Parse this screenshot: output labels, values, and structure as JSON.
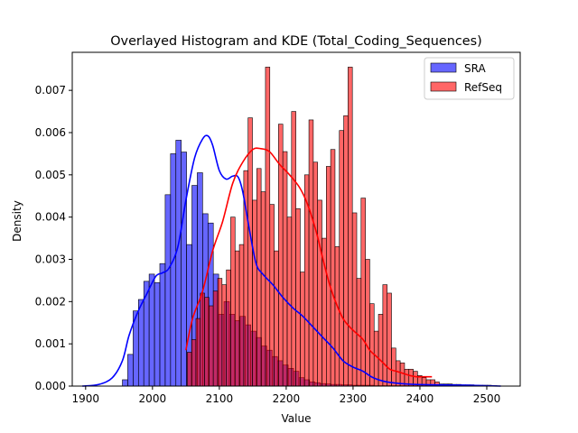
{
  "chart_data": {
    "type": "histogram",
    "title": "Overlayed Histogram and KDE (Total_Coding_Sequences)",
    "xlabel": "Value",
    "ylabel": "Density",
    "xlim": [
      1880,
      2550
    ],
    "ylim": [
      0,
      0.0079
    ],
    "xticks": [
      1900,
      2000,
      2100,
      2200,
      2300,
      2400,
      2500
    ],
    "yticks": [
      0.0,
      0.001,
      0.002,
      0.003,
      0.004,
      0.005,
      0.006,
      0.007
    ],
    "ytick_labels": [
      "0.000",
      "0.001",
      "0.002",
      "0.003",
      "0.004",
      "0.005",
      "0.006",
      "0.007"
    ],
    "legend_position": "top-right",
    "series": [
      {
        "name": "SRA",
        "color": "#0000ff",
        "bin_start": 1955,
        "bin_width": 8,
        "density": [
          0.00015,
          0.00075,
          0.00178,
          0.00205,
          0.00248,
          0.00265,
          0.00245,
          0.0029,
          0.00453,
          0.0055,
          0.00582,
          0.00554,
          0.00335,
          0.00475,
          0.00505,
          0.00408,
          0.00386,
          0.00265,
          0.0017,
          0.002,
          0.0017,
          0.00155,
          0.00165,
          0.00145,
          0.0013,
          0.00115,
          0.00095,
          0.00085,
          0.0007,
          0.0006,
          0.0005,
          0.00042,
          0.00035,
          0.0002,
          0.00015,
          0.0001,
          8e-05,
          6e-05,
          5e-05,
          4e-05,
          4e-05,
          3e-05,
          3e-05,
          2e-05,
          2e-05,
          2e-05,
          2e-05,
          1e-05,
          1e-05,
          1e-05,
          1e-05,
          1e-05,
          1e-05,
          1e-05,
          1e-05,
          1e-05,
          1e-05,
          1e-05,
          1e-05,
          1e-05,
          1e-05,
          1e-05,
          1e-05,
          1e-05,
          1e-05,
          1e-05,
          1e-05,
          1e-05,
          1e-05,
          1e-05
        ],
        "kde": [
          [
            1895,
            0.0
          ],
          [
            1920,
            4e-05
          ],
          [
            1940,
            0.0002
          ],
          [
            1955,
            0.0006
          ],
          [
            1965,
            0.0012
          ],
          [
            1978,
            0.00175
          ],
          [
            1992,
            0.0022
          ],
          [
            2005,
            0.0026
          ],
          [
            2015,
            0.00268
          ],
          [
            2025,
            0.0028
          ],
          [
            2038,
            0.0033
          ],
          [
            2050,
            0.0044
          ],
          [
            2063,
            0.0054
          ],
          [
            2075,
            0.00585
          ],
          [
            2083,
            0.00592
          ],
          [
            2090,
            0.0057
          ],
          [
            2100,
            0.0051
          ],
          [
            2110,
            0.0049
          ],
          [
            2120,
            0.00497
          ],
          [
            2128,
            0.00495
          ],
          [
            2135,
            0.0046
          ],
          [
            2145,
            0.0037
          ],
          [
            2155,
            0.0029
          ],
          [
            2165,
            0.00265
          ],
          [
            2180,
            0.0024
          ],
          [
            2195,
            0.0021
          ],
          [
            2210,
            0.00185
          ],
          [
            2225,
            0.00165
          ],
          [
            2240,
            0.0014
          ],
          [
            2255,
            0.00115
          ],
          [
            2270,
            0.0009
          ],
          [
            2285,
            0.0006
          ],
          [
            2300,
            0.00045
          ],
          [
            2315,
            0.00035
          ],
          [
            2330,
            0.0002
          ],
          [
            2350,
            0.0001
          ],
          [
            2380,
            5e-05
          ],
          [
            2420,
            3e-05
          ],
          [
            2470,
            2e-05
          ],
          [
            2521,
            0.0
          ]
        ]
      },
      {
        "name": "RefSeq",
        "color": "#ff0000",
        "bin_start": 2052,
        "bin_width": 6.5,
        "density": [
          0.0008,
          0.0011,
          0.0016,
          0.0022,
          0.0021,
          0.0019,
          0.00225,
          0.00255,
          0.0024,
          0.00275,
          0.004,
          0.0032,
          0.00335,
          0.0051,
          0.00635,
          0.0044,
          0.00515,
          0.0046,
          0.00755,
          0.0043,
          0.0032,
          0.0062,
          0.00555,
          0.004,
          0.0065,
          0.0042,
          0.0027,
          0.005,
          0.0063,
          0.0053,
          0.0044,
          0.0035,
          0.0052,
          0.0056,
          0.0033,
          0.00605,
          0.0064,
          0.00755,
          0.0041,
          0.00255,
          0.00445,
          0.003,
          0.00195,
          0.0013,
          0.0017,
          0.0024,
          0.0022,
          0.0009,
          0.0006,
          0.00055,
          0.0004,
          0.0004,
          0.00035,
          0.00025,
          0.0002,
          0.00015,
          0.00015,
          0.0001,
          5e-05,
          5e-05,
          5e-05,
          4e-05,
          4e-05,
          3e-05,
          3e-05,
          3e-05,
          2e-05,
          2e-05,
          2e-05,
          2e-05
        ],
        "kde": [
          [
            2050,
            0.00085
          ],
          [
            2060,
            0.0016
          ],
          [
            2075,
            0.00225
          ],
          [
            2090,
            0.0032
          ],
          [
            2105,
            0.0039
          ],
          [
            2120,
            0.0048
          ],
          [
            2135,
            0.0053
          ],
          [
            2150,
            0.0056
          ],
          [
            2162,
            0.00562
          ],
          [
            2175,
            0.00555
          ],
          [
            2190,
            0.00525
          ],
          [
            2205,
            0.005
          ],
          [
            2220,
            0.0047
          ],
          [
            2232,
            0.0043
          ],
          [
            2245,
            0.00365
          ],
          [
            2255,
            0.003
          ],
          [
            2265,
            0.0024
          ],
          [
            2275,
            0.00195
          ],
          [
            2285,
            0.0016
          ],
          [
            2295,
            0.0014
          ],
          [
            2305,
            0.00125
          ],
          [
            2315,
            0.0011
          ],
          [
            2325,
            0.00085
          ],
          [
            2335,
            0.0007
          ],
          [
            2345,
            0.00055
          ],
          [
            2355,
            0.0004
          ],
          [
            2365,
            0.00035
          ],
          [
            2375,
            0.0003
          ],
          [
            2385,
            0.00025
          ],
          [
            2395,
            0.00022
          ],
          [
            2405,
            0.00022
          ],
          [
            2418,
            0.00022
          ]
        ]
      }
    ]
  }
}
